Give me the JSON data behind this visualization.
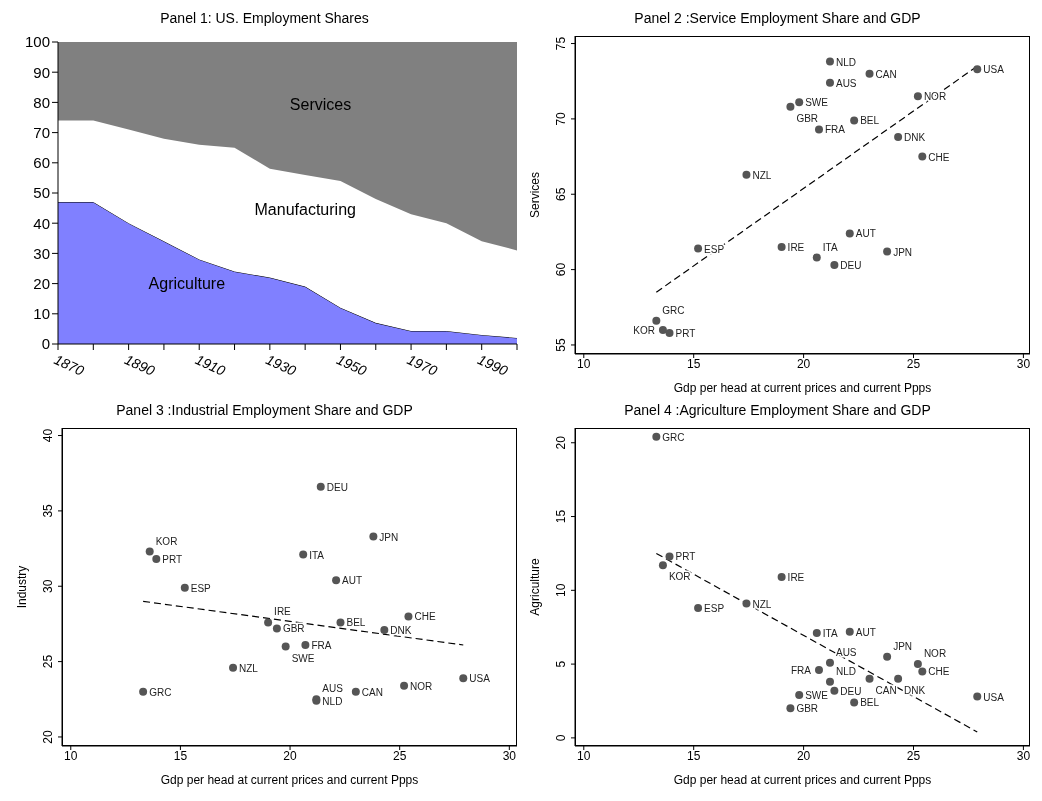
{
  "chart_data": [
    {
      "type": "area",
      "title": "Panel 1: US. Employment Shares",
      "stacked": true,
      "x": [
        1870,
        1880,
        1890,
        1900,
        1910,
        1920,
        1930,
        1940,
        1950,
        1960,
        1970,
        1980,
        1990,
        2000
      ],
      "series": [
        {
          "name": "Agriculture",
          "color": "#8080ff",
          "values": [
            47,
            47,
            40,
            34,
            28,
            24,
            22,
            19,
            12,
            7,
            4.3,
            4.3,
            3,
            2
          ]
        },
        {
          "name": "Manufacturing",
          "color": "#ffffff",
          "values": [
            27,
            27,
            31,
            34,
            38,
            41,
            36,
            37,
            42,
            41,
            38.7,
            35.7,
            31,
            29
          ]
        },
        {
          "name": "Services",
          "color": "#808080",
          "values": [
            26,
            26,
            29,
            32,
            34,
            35,
            42,
            44,
            46,
            52,
            57,
            60,
            66,
            69
          ]
        }
      ],
      "xlim": [
        1870,
        2000
      ],
      "xticks": [
        1870,
        {
          "value": 1880,
          "label": null
        },
        1890,
        {
          "value": 1900,
          "label": null
        },
        1910,
        {
          "value": 1920,
          "label": null
        },
        1930,
        {
          "value": 1940,
          "label": null
        },
        1950,
        {
          "value": 1960,
          "label": null
        },
        1970,
        {
          "value": 1980,
          "label": null
        },
        1990,
        {
          "value": 2000,
          "label": null
        }
      ],
      "ylim": [
        0,
        100
      ],
      "yticks": [
        0,
        10,
        20,
        30,
        40,
        50,
        60,
        70,
        80,
        90,
        100
      ]
    },
    {
      "type": "scatter",
      "title": "Panel 2 :Service Employment Share and GDP",
      "xlabel": "Gdp per head at current prices and current Ppps",
      "ylabel": "Services",
      "marker": "circle",
      "xlim": [
        9.6,
        30.3
      ],
      "xticks": [
        10,
        15,
        20,
        25,
        30
      ],
      "ylim": [
        54.4,
        75.5
      ],
      "yticks": [
        55,
        60,
        65,
        70,
        75
      ],
      "series": [
        {
          "color": "#555555",
          "x": [
            13.3,
            13.6,
            13.9,
            15.2,
            17.4,
            19.0,
            19.4,
            19.8,
            20.6,
            20.7,
            21.2,
            21.2,
            21.4,
            22.1,
            22.3,
            23.0,
            23.8,
            24.3,
            25.2,
            25.4,
            27.9
          ],
          "values": [
            56.6,
            56.0,
            55.8,
            61.4,
            66.3,
            61.5,
            70.8,
            71.1,
            60.8,
            69.3,
            73.8,
            72.4,
            60.3,
            62.4,
            69.9,
            73.0,
            61.2,
            68.8,
            71.5,
            67.5,
            73.3
          ]
        },
        {
          "type": "line",
          "color": "#000000",
          "line_style": "dashed",
          "marker": "none",
          "x": [
            13.3,
            27.9
          ],
          "values": [
            58.5,
            73.5
          ]
        }
      ],
      "annotations": [
        {
          "text": "GRC",
          "x": 13.3,
          "y": 56.6
        },
        {
          "text": "KOR",
          "x": 13.6,
          "y": 56.0
        },
        {
          "text": "PRT",
          "x": 13.9,
          "y": 55.8
        },
        {
          "text": "ESP",
          "x": 15.2,
          "y": 61.4
        },
        {
          "text": "NZL",
          "x": 17.4,
          "y": 66.3
        },
        {
          "text": "IRE",
          "x": 19.0,
          "y": 61.5
        },
        {
          "text": "GBR",
          "x": 19.4,
          "y": 70.8
        },
        {
          "text": "SWE",
          "x": 19.8,
          "y": 71.1
        },
        {
          "text": "ITA",
          "x": 20.6,
          "y": 60.8
        },
        {
          "text": "FRA",
          "x": 20.7,
          "y": 69.3
        },
        {
          "text": "NLD",
          "x": 21.2,
          "y": 73.8
        },
        {
          "text": "AUS",
          "x": 21.2,
          "y": 72.4
        },
        {
          "text": "DEU",
          "x": 21.4,
          "y": 60.3
        },
        {
          "text": "AUT",
          "x": 22.1,
          "y": 62.4
        },
        {
          "text": "BEL",
          "x": 22.3,
          "y": 69.9
        },
        {
          "text": "CAN",
          "x": 23.0,
          "y": 73.0
        },
        {
          "text": "JPN",
          "x": 23.8,
          "y": 61.2
        },
        {
          "text": "DNK",
          "x": 24.3,
          "y": 68.8
        },
        {
          "text": "NOR",
          "x": 25.2,
          "y": 71.5
        },
        {
          "text": "CHE",
          "x": 25.4,
          "y": 67.5
        },
        {
          "text": "USA",
          "x": 27.9,
          "y": 73.3
        }
      ]
    },
    {
      "type": "scatter",
      "title": "Panel 3 :Industrial Employment Share and GDP",
      "xlabel": "Gdp per head at current prices and current Ppps",
      "ylabel": "Industry",
      "marker": "circle",
      "xlim": [
        9.6,
        30.35
      ],
      "xticks": [
        10,
        15,
        20,
        25,
        30
      ],
      "ylim": [
        19.4,
        40.5
      ],
      "yticks": [
        20,
        25,
        30,
        35,
        40
      ],
      "series": [
        {
          "color": "#555555",
          "x": [
            13.3,
            13.6,
            13.9,
            15.2,
            17.4,
            19.0,
            19.4,
            19.8,
            20.6,
            20.7,
            21.2,
            21.2,
            21.4,
            22.1,
            22.3,
            23.0,
            23.8,
            24.3,
            25.2,
            25.4,
            27.9
          ],
          "values": [
            23.0,
            32.3,
            31.8,
            29.9,
            24.6,
            27.6,
            27.2,
            26.0,
            32.1,
            26.1,
            22.4,
            22.5,
            36.6,
            30.4,
            27.6,
            23.0,
            33.3,
            27.1,
            23.4,
            28.0,
            23.9
          ]
        },
        {
          "type": "line",
          "color": "#000000",
          "line_style": "dashed",
          "marker": "none",
          "x": [
            13.3,
            27.9
          ],
          "values": [
            29.0,
            26.1
          ]
        }
      ],
      "annotations": [
        {
          "text": "GRC",
          "x": 13.3,
          "y": 23.0
        },
        {
          "text": "KOR",
          "x": 13.6,
          "y": 32.3
        },
        {
          "text": "PRT",
          "x": 13.9,
          "y": 31.8
        },
        {
          "text": "ESP",
          "x": 15.2,
          "y": 29.9
        },
        {
          "text": "NZL",
          "x": 17.4,
          "y": 24.6
        },
        {
          "text": "IRE",
          "x": 19.0,
          "y": 27.6
        },
        {
          "text": "GBR",
          "x": 19.4,
          "y": 27.2
        },
        {
          "text": "SWE",
          "x": 19.8,
          "y": 26.0
        },
        {
          "text": "ITA",
          "x": 20.6,
          "y": 32.1
        },
        {
          "text": "FRA",
          "x": 20.7,
          "y": 26.1
        },
        {
          "text": "NLD",
          "x": 21.2,
          "y": 22.4
        },
        {
          "text": "AUS",
          "x": 21.2,
          "y": 22.5
        },
        {
          "text": "DEU",
          "x": 21.4,
          "y": 36.6
        },
        {
          "text": "AUT",
          "x": 22.1,
          "y": 30.4
        },
        {
          "text": "BEL",
          "x": 22.3,
          "y": 27.6
        },
        {
          "text": "CAN",
          "x": 23.0,
          "y": 23.0
        },
        {
          "text": "JPN",
          "x": 23.8,
          "y": 33.3
        },
        {
          "text": "DNK",
          "x": 24.3,
          "y": 27.1
        },
        {
          "text": "NOR",
          "x": 25.2,
          "y": 23.4
        },
        {
          "text": "CHE",
          "x": 25.4,
          "y": 28.0
        },
        {
          "text": "USA",
          "x": 27.9,
          "y": 23.9
        }
      ]
    },
    {
      "type": "scatter",
      "title": "Panel 4 :Agriculture Employment Share and GDP",
      "xlabel": "Gdp per head at current prices and current Ppps",
      "ylabel": "Agriculture",
      "marker": "circle",
      "xlim": [
        9.6,
        30.3
      ],
      "xticks": [
        10,
        15,
        20,
        25,
        30
      ],
      "ylim": [
        -0.55,
        21
      ],
      "yticks": [
        0,
        5,
        10,
        15,
        20
      ],
      "series": [
        {
          "color": "#555555",
          "x": [
            13.3,
            13.6,
            13.9,
            15.2,
            17.4,
            19.0,
            19.4,
            19.8,
            20.6,
            20.7,
            21.2,
            21.2,
            21.4,
            22.1,
            22.3,
            23.0,
            23.8,
            24.3,
            25.2,
            25.4,
            27.9
          ],
          "values": [
            20.4,
            11.7,
            12.3,
            8.8,
            9.1,
            10.9,
            2.0,
            2.9,
            7.1,
            4.6,
            3.8,
            5.1,
            3.2,
            7.2,
            2.4,
            4.0,
            5.5,
            4.0,
            5.0,
            4.5,
            2.8
          ]
        },
        {
          "type": "line",
          "color": "#000000",
          "line_style": "dashed",
          "marker": "none",
          "x": [
            13.3,
            27.9
          ],
          "values": [
            12.5,
            0.4
          ]
        }
      ],
      "annotations": [
        {
          "text": "GRC",
          "x": 13.3,
          "y": 20.4
        },
        {
          "text": "KOR",
          "x": 13.6,
          "y": 11.7
        },
        {
          "text": "PRT",
          "x": 13.9,
          "y": 12.3
        },
        {
          "text": "ESP",
          "x": 15.2,
          "y": 8.8
        },
        {
          "text": "NZL",
          "x": 17.4,
          "y": 9.1
        },
        {
          "text": "IRE",
          "x": 19.0,
          "y": 10.9
        },
        {
          "text": "GBR",
          "x": 19.4,
          "y": 2.0
        },
        {
          "text": "SWE",
          "x": 19.8,
          "y": 2.9
        },
        {
          "text": "ITA",
          "x": 20.6,
          "y": 7.1
        },
        {
          "text": "FRA",
          "x": 20.7,
          "y": 4.6
        },
        {
          "text": "NLD",
          "x": 21.2,
          "y": 3.8
        },
        {
          "text": "AUS",
          "x": 21.2,
          "y": 5.1
        },
        {
          "text": "DEU",
          "x": 21.4,
          "y": 3.2
        },
        {
          "text": "AUT",
          "x": 22.1,
          "y": 7.2
        },
        {
          "text": "BEL",
          "x": 22.3,
          "y": 2.4
        },
        {
          "text": "CAN",
          "x": 23.0,
          "y": 4.0
        },
        {
          "text": "JPN",
          "x": 23.8,
          "y": 5.5
        },
        {
          "text": "DNK",
          "x": 24.3,
          "y": 4.0
        },
        {
          "text": "NOR",
          "x": 25.2,
          "y": 5.0
        },
        {
          "text": "CHE",
          "x": 25.4,
          "y": 4.5
        },
        {
          "text": "USA",
          "x": 27.9,
          "y": 2.8
        }
      ]
    }
  ]
}
